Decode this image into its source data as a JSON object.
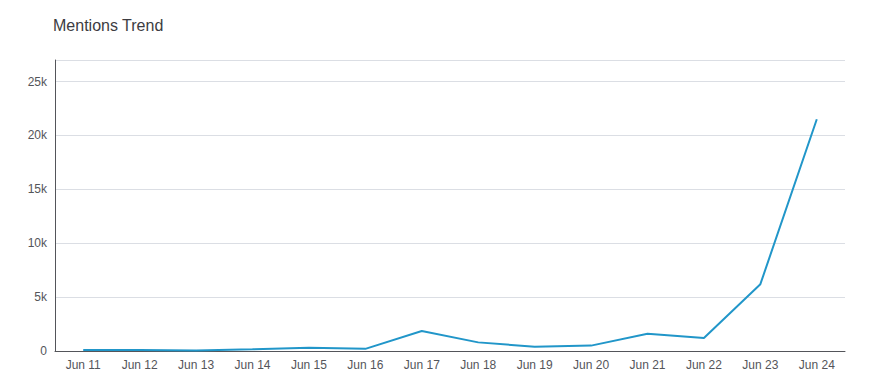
{
  "chart_data": {
    "type": "line",
    "title": "Mentions Trend",
    "categories": [
      "Jun 11",
      "Jun 12",
      "Jun 13",
      "Jun 14",
      "Jun 15",
      "Jun 16",
      "Jun 17",
      "Jun 18",
      "Jun 19",
      "Jun 20",
      "Jun 21",
      "Jun 22",
      "Jun 23",
      "Jun 24"
    ],
    "values": [
      100,
      90,
      55,
      160,
      310,
      200,
      1850,
      800,
      400,
      500,
      1600,
      1200,
      6200,
      21500
    ],
    "color": "#2196C9",
    "ylim": [
      0,
      27000
    ],
    "yticks": [
      0,
      {
        "value": 5000,
        "label": "5k"
      },
      {
        "value": 10000,
        "label": "10k"
      },
      {
        "value": 15000,
        "label": "15k"
      },
      {
        "value": 20000,
        "label": "20k"
      },
      {
        "value": 25000,
        "label": "25k"
      }
    ],
    "grid": true
  }
}
